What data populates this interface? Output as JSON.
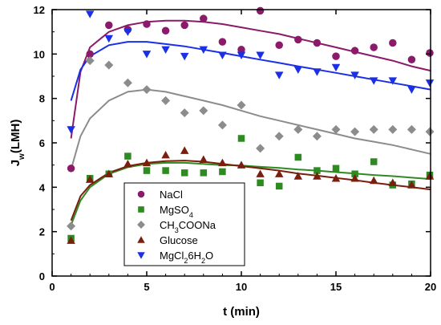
{
  "chart_data": {
    "type": "scatter",
    "title": "",
    "xlabel": "t (min)",
    "ylabel": {
      "main": "J",
      "sub": "w",
      "rest": "(LMH)"
    },
    "xlim": [
      0,
      20
    ],
    "ylim": [
      0,
      12
    ],
    "xticks": [
      0,
      5,
      10,
      15,
      20
    ],
    "yticks": [
      0,
      2,
      4,
      6,
      8,
      10,
      12
    ],
    "grid": false,
    "legend_position": "bottom-center",
    "series": [
      {
        "name": "NaCl",
        "name_parts": [
          {
            "t": "NaCl",
            "sub": false
          }
        ],
        "marker": "circle",
        "color": "#8b1a6b",
        "x": [
          1,
          2,
          3,
          4,
          5,
          6,
          7,
          8,
          9,
          10,
          11,
          12,
          13,
          14,
          15,
          16,
          17,
          18,
          19,
          20
        ],
        "y": [
          4.85,
          10.0,
          11.3,
          11.1,
          11.35,
          11.05,
          11.3,
          11.6,
          10.55,
          10.2,
          11.95,
          10.4,
          10.65,
          10.5,
          9.9,
          10.15,
          10.3,
          10.5,
          9.75,
          10.05
        ],
        "fit": [
          [
            1,
            6.2
          ],
          [
            1.5,
            9.2
          ],
          [
            2,
            10.3
          ],
          [
            3,
            11.0
          ],
          [
            4,
            11.3
          ],
          [
            5,
            11.45
          ],
          [
            6,
            11.5
          ],
          [
            7,
            11.5
          ],
          [
            8,
            11.45
          ],
          [
            9,
            11.35
          ],
          [
            10,
            11.2
          ],
          [
            11,
            11.05
          ],
          [
            12,
            10.9
          ],
          [
            13,
            10.7
          ],
          [
            14,
            10.5
          ],
          [
            15,
            10.3
          ],
          [
            16,
            10.1
          ],
          [
            17,
            9.9
          ],
          [
            18,
            9.7
          ],
          [
            19,
            9.45
          ],
          [
            20,
            9.25
          ]
        ]
      },
      {
        "name": "MgSO4",
        "name_parts": [
          {
            "t": "MgSO",
            "sub": false
          },
          {
            "t": "4",
            "sub": true
          }
        ],
        "marker": "square",
        "color": "#2e8b22",
        "x": [
          1,
          2,
          3,
          4,
          5,
          6,
          7,
          8,
          9,
          10,
          11,
          12,
          13,
          14,
          15,
          16,
          17,
          18,
          19,
          20
        ],
        "y": [
          1.7,
          4.4,
          4.6,
          5.4,
          4.75,
          4.75,
          4.65,
          4.65,
          4.7,
          6.2,
          4.2,
          4.05,
          5.35,
          4.75,
          4.85,
          4.6,
          5.15,
          4.1,
          4.15,
          4.55
        ],
        "fit": [
          [
            1,
            2.3
          ],
          [
            1.5,
            3.4
          ],
          [
            2,
            4.0
          ],
          [
            3,
            4.6
          ],
          [
            4,
            4.9
          ],
          [
            5,
            5.05
          ],
          [
            6,
            5.1
          ],
          [
            7,
            5.1
          ],
          [
            8,
            5.05
          ],
          [
            9,
            5.0
          ],
          [
            10,
            4.98
          ],
          [
            11,
            4.92
          ],
          [
            12,
            4.87
          ],
          [
            13,
            4.8
          ],
          [
            14,
            4.75
          ],
          [
            15,
            4.68
          ],
          [
            16,
            4.62
          ],
          [
            17,
            4.55
          ],
          [
            18,
            4.5
          ],
          [
            19,
            4.43
          ],
          [
            20,
            4.37
          ]
        ]
      },
      {
        "name": "CH3COONa",
        "name_parts": [
          {
            "t": "CH",
            "sub": false
          },
          {
            "t": "3",
            "sub": true
          },
          {
            "t": "COONa",
            "sub": false
          }
        ],
        "marker": "diamond",
        "color": "#8c8c8c",
        "x": [
          1,
          2,
          3,
          4,
          5,
          6,
          7,
          8,
          9,
          10,
          11,
          12,
          13,
          14,
          15,
          16,
          17,
          18,
          19,
          20
        ],
        "y": [
          2.25,
          9.7,
          9.5,
          8.7,
          8.4,
          7.9,
          7.35,
          7.45,
          6.8,
          7.7,
          5.75,
          6.3,
          6.6,
          6.3,
          6.6,
          6.5,
          6.6,
          6.6,
          6.6,
          6.5
        ],
        "fit": [
          [
            1,
            4.8
          ],
          [
            1.5,
            6.3
          ],
          [
            2,
            7.1
          ],
          [
            3,
            7.9
          ],
          [
            4,
            8.3
          ],
          [
            5,
            8.4
          ],
          [
            6,
            8.3
          ],
          [
            7,
            8.1
          ],
          [
            8,
            7.9
          ],
          [
            9,
            7.7
          ],
          [
            10,
            7.45
          ],
          [
            11,
            7.2
          ],
          [
            12,
            7.0
          ],
          [
            13,
            6.8
          ],
          [
            14,
            6.6
          ],
          [
            15,
            6.4
          ],
          [
            16,
            6.2
          ],
          [
            17,
            6.05
          ],
          [
            18,
            5.9
          ],
          [
            19,
            5.7
          ],
          [
            20,
            5.5
          ]
        ]
      },
      {
        "name": "Glucose",
        "name_parts": [
          {
            "t": "Glucose",
            "sub": false
          }
        ],
        "marker": "triangle-up",
        "color": "#7a1e0e",
        "x": [
          1,
          2,
          3,
          4,
          5,
          6,
          7,
          8,
          9,
          10,
          11,
          12,
          13,
          14,
          15,
          16,
          17,
          18,
          19,
          20
        ],
        "y": [
          1.6,
          4.35,
          4.6,
          5.05,
          5.1,
          5.45,
          5.65,
          5.25,
          5.1,
          5.0,
          4.6,
          4.6,
          4.5,
          4.5,
          4.4,
          4.4,
          4.3,
          4.2,
          4.1,
          4.5
        ],
        "fit": [
          [
            1,
            2.5
          ],
          [
            1.5,
            3.6
          ],
          [
            2,
            4.1
          ],
          [
            3,
            4.65
          ],
          [
            4,
            4.95
          ],
          [
            5,
            5.1
          ],
          [
            6,
            5.18
          ],
          [
            7,
            5.2
          ],
          [
            8,
            5.15
          ],
          [
            9,
            5.05
          ],
          [
            10,
            4.95
          ],
          [
            11,
            4.85
          ],
          [
            12,
            4.75
          ],
          [
            13,
            4.62
          ],
          [
            14,
            4.52
          ],
          [
            15,
            4.42
          ],
          [
            16,
            4.32
          ],
          [
            17,
            4.2
          ],
          [
            18,
            4.1
          ],
          [
            19,
            4.0
          ],
          [
            20,
            3.9
          ]
        ]
      },
      {
        "name": "MgCl26H2O",
        "name_parts": [
          {
            "t": "MgCl",
            "sub": false
          },
          {
            "t": "2",
            "sub": true
          },
          {
            "t": "6H",
            "sub": false
          },
          {
            "t": "2",
            "sub": true
          },
          {
            "t": "O",
            "sub": false
          }
        ],
        "marker": "triangle-down",
        "color": "#1a2fe6",
        "x": [
          1,
          2,
          3,
          4,
          5,
          6,
          7,
          8,
          9,
          10,
          11,
          12,
          13,
          14,
          15,
          16,
          17,
          18,
          19,
          20
        ],
        "y": [
          6.6,
          11.8,
          10.7,
          11.0,
          10.0,
          10.2,
          9.9,
          10.2,
          9.95,
          9.95,
          9.95,
          9.05,
          9.3,
          9.2,
          9.4,
          9.05,
          8.8,
          8.8,
          8.4,
          8.7
        ],
        "fit": [
          [
            1,
            7.9
          ],
          [
            1.5,
            9.3
          ],
          [
            2,
            9.9
          ],
          [
            3,
            10.4
          ],
          [
            4,
            10.55
          ],
          [
            5,
            10.55
          ],
          [
            6,
            10.45
          ],
          [
            7,
            10.35
          ],
          [
            8,
            10.2
          ],
          [
            9,
            10.05
          ],
          [
            10,
            9.9
          ],
          [
            11,
            9.75
          ],
          [
            12,
            9.6
          ],
          [
            13,
            9.45
          ],
          [
            14,
            9.3
          ],
          [
            15,
            9.15
          ],
          [
            16,
            9.0
          ],
          [
            17,
            8.85
          ],
          [
            18,
            8.7
          ],
          [
            19,
            8.55
          ],
          [
            20,
            8.4
          ]
        ]
      }
    ]
  }
}
